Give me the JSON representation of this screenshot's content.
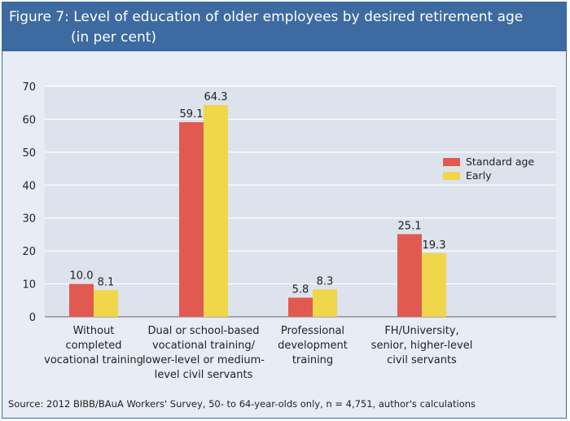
{
  "header": {
    "title_line1": "Figure 7: Level of education of older employees by desired retirement age",
    "title_line2": "(in per cent)"
  },
  "chart_data": {
    "type": "bar",
    "title": "Figure 7: Level of education of older employees by desired retirement age (in per cent)",
    "categories": [
      [
        "Without",
        "completed",
        "vocational training"
      ],
      [
        "Dual or school-based",
        "vocational training/",
        "lower-level or medium-",
        "level civil servants"
      ],
      [
        "Professional",
        "development",
        "training"
      ],
      [
        "FH/University,",
        "senior, higher-level",
        "civil servants"
      ]
    ],
    "series": [
      {
        "name": "Standard age",
        "values": [
          10.0,
          59.1,
          5.8,
          25.1
        ],
        "labels": [
          "10.0",
          "59.1",
          "5.8",
          "25.1"
        ],
        "color": "#e05a52"
      },
      {
        "name": "Early",
        "values": [
          8.1,
          64.3,
          8.3,
          19.3
        ],
        "labels": [
          "8.1",
          "64.3",
          "8.3",
          "19.3"
        ],
        "color": "#f0d64a"
      }
    ],
    "ylim": [
      0,
      70
    ],
    "yticks": [
      0,
      10,
      20,
      30,
      40,
      50,
      60,
      70
    ],
    "xlabel": "",
    "ylabel": "",
    "grid": true,
    "legend": "right",
    "plot_background": "#dce3ed"
  },
  "footer": {
    "source": "Source: 2012 BIBB/BAuA Workers' Survey, 50- to 64-year-olds only, n = 4,751, author's calculations"
  },
  "colors": {
    "header_bg": "#3d6aa0",
    "panel_bg": "#e8ecf4"
  }
}
